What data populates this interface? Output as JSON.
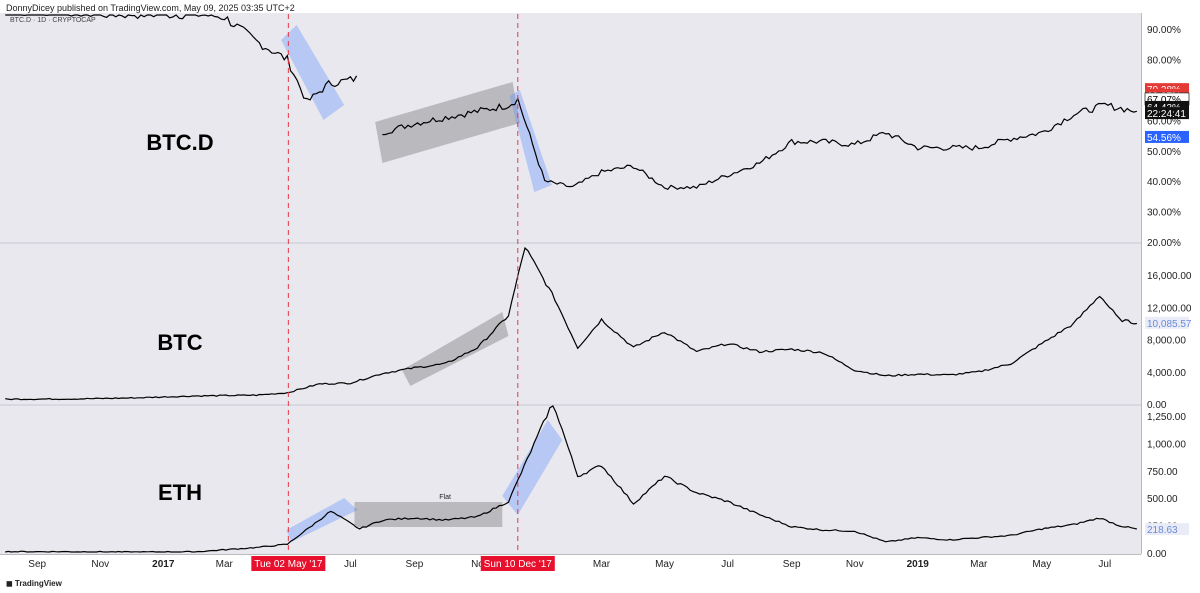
{
  "header": {
    "attribution": "DonnyDicey published on TradingView.com, May 09, 2025 03:35 UTC+2",
    "symbol": "BTC.D · 1D · CRYPTOCAP"
  },
  "footer": {
    "brand": "TradingView"
  },
  "colors": {
    "bg": "#e8e8ee",
    "line": "#000000",
    "vline": "#e63946",
    "blue_box": "rgba(95,140,255,0.35)",
    "grey_box": "rgba(80,80,80,0.3)"
  },
  "chart_data": [
    {
      "type": "line",
      "title": "BTC.D",
      "ylim": [
        20,
        95
      ],
      "ticks": [
        "90.00%",
        "80.00%",
        "70.00%",
        "60.00%",
        "50.00%",
        "40.00%",
        "30.00%",
        "20.00%"
      ],
      "tick_values": [
        90,
        80,
        70,
        60,
        50,
        40,
        30,
        20
      ],
      "price_labels": [
        {
          "text": "70.28%",
          "value": 70.28,
          "color": "#e53935"
        },
        {
          "text": "68.37%",
          "value": 68.37,
          "color": "#e53935"
        },
        {
          "text": "67.07%",
          "value": 67.07,
          "color": "#ffffff"
        },
        {
          "text": "64.43%",
          "value": 64.43,
          "color": "#111111"
        },
        {
          "text": "22:24:41",
          "value": 62.4,
          "color": "#111111"
        },
        {
          "text": "54.56%",
          "value": 54.56,
          "color": "#2962ff"
        }
      ],
      "x": [
        "2016-08-01",
        "2016-09-01",
        "2016-10-01",
        "2016-11-01",
        "2016-12-01",
        "2017-01-01",
        "2017-02-01",
        "2017-03-01",
        "2017-04-01",
        "2017-05-01",
        "2017-05-20",
        "2017-06-10",
        "2017-07-10",
        "2017-08-01",
        "2017-09-01",
        "2017-10-01",
        "2017-11-01",
        "2017-12-01",
        "2017-12-10",
        "2018-01-05",
        "2018-02-01",
        "2018-03-01",
        "2018-04-01",
        "2018-05-01",
        "2018-06-01",
        "2018-07-01",
        "2018-08-01",
        "2018-09-01",
        "2018-10-01",
        "2018-11-01",
        "2018-12-01",
        "2019-01-01",
        "2019-02-01",
        "2019-03-01",
        "2019-04-01",
        "2019-05-01",
        "2019-06-01",
        "2019-07-01",
        "2019-08-01"
      ],
      "series": [
        {
          "values": [
            96,
            96,
            96,
            95,
            95,
            95,
            95,
            94,
            86,
            80,
            66,
            72,
            74,
            56,
            59,
            61,
            63,
            65,
            67,
            40,
            38,
            43,
            45,
            38,
            38,
            42,
            46,
            53,
            53,
            52,
            56,
            51,
            51,
            51,
            54,
            56,
            62,
            65,
            63
          ]
        }
      ],
      "annotations": []
    },
    {
      "type": "line",
      "title": "BTC",
      "ylim": [
        0,
        20000
      ],
      "ticks": [
        "16,000.00",
        "12,000.00",
        "8,000.00",
        "4,000.00",
        "0.00"
      ],
      "tick_values": [
        16000,
        12000,
        8000,
        4000,
        0
      ],
      "price_labels": [
        {
          "text": "10,085.57",
          "value": 10085.57,
          "color": "#e9ecf7"
        }
      ],
      "x": [
        "2016-08-01",
        "2016-10-01",
        "2016-12-01",
        "2017-02-01",
        "2017-04-01",
        "2017-05-01",
        "2017-06-01",
        "2017-07-01",
        "2017-08-01",
        "2017-09-01",
        "2017-10-01",
        "2017-11-01",
        "2017-12-01",
        "2017-12-17",
        "2018-01-15",
        "2018-02-06",
        "2018-03-01",
        "2018-04-01",
        "2018-05-01",
        "2018-06-01",
        "2018-07-01",
        "2018-08-01",
        "2018-09-01",
        "2018-10-01",
        "2018-11-01",
        "2018-12-01",
        "2019-01-01",
        "2019-02-01",
        "2019-03-01",
        "2019-04-01",
        "2019-05-01",
        "2019-06-01",
        "2019-06-26",
        "2019-07-15",
        "2019-08-01"
      ],
      "series": [
        {
          "values": [
            600,
            620,
            750,
            1000,
            1100,
            1400,
            2500,
            2600,
            3800,
            4500,
            5000,
            7000,
            11000,
            19500,
            13000,
            7000,
            10500,
            7000,
            9000,
            6500,
            7500,
            6500,
            6800,
            6400,
            4200,
            3500,
            3700,
            3600,
            4000,
            5000,
            7500,
            10000,
            13500,
            10500,
            10000
          ]
        }
      ],
      "annotations": []
    },
    {
      "type": "line",
      "title": "ETH",
      "ylim": [
        0,
        1350
      ],
      "ticks": [
        "1,250.00",
        "1,000.00",
        "750.00",
        "500.00",
        "250.00",
        "0.00"
      ],
      "tick_values": [
        1250,
        1000,
        750,
        500,
        250,
        0
      ],
      "price_labels": [
        {
          "text": "218.63",
          "value": 218.63,
          "color": "#e9ecf7"
        }
      ],
      "x": [
        "2016-08-01",
        "2016-10-01",
        "2016-12-01",
        "2017-02-01",
        "2017-04-01",
        "2017-05-01",
        "2017-06-12",
        "2017-07-10",
        "2017-08-01",
        "2017-09-01",
        "2017-10-01",
        "2017-11-01",
        "2017-12-01",
        "2018-01-13",
        "2018-02-06",
        "2018-03-01",
        "2018-04-01",
        "2018-05-01",
        "2018-06-01",
        "2018-07-01",
        "2018-08-01",
        "2018-09-01",
        "2018-10-01",
        "2018-11-01",
        "2018-12-01",
        "2019-01-01",
        "2019-02-01",
        "2019-03-01",
        "2019-04-01",
        "2019-05-01",
        "2019-06-01",
        "2019-06-26",
        "2019-07-15",
        "2019-08-01"
      ],
      "series": [
        {
          "values": [
            12,
            12,
            9,
            11,
            50,
            80,
            380,
            220,
            300,
            320,
            300,
            330,
            470,
            1380,
            700,
            800,
            450,
            700,
            550,
            470,
            350,
            240,
            210,
            200,
            100,
            140,
            120,
            140,
            160,
            220,
            260,
            320,
            250,
            218
          ]
        }
      ],
      "annotations": [
        {
          "text": "Flat"
        }
      ]
    }
  ],
  "x_axis": {
    "ticks": [
      "Sep",
      "Nov",
      "2017",
      "Mar",
      "Jul",
      "Sep",
      "No",
      "Mar",
      "May",
      "Jul",
      "Sep",
      "Nov",
      "2019",
      "Mar",
      "May",
      "Jul"
    ],
    "tick_dates": [
      "2016-09-01",
      "2016-11-01",
      "2017-01-01",
      "2017-03-01",
      "2017-07-01",
      "2017-09-01",
      "2017-11-01",
      "2018-03-01",
      "2018-05-01",
      "2018-07-01",
      "2018-09-01",
      "2018-11-01",
      "2019-01-01",
      "2019-03-01",
      "2019-05-01",
      "2019-07-01"
    ],
    "bold": [
      "2017",
      "2019"
    ],
    "date_range": [
      "2016-07-27",
      "2019-08-05"
    ],
    "highlight_labels": [
      {
        "text": "Tue 02 May '17",
        "date": "2017-05-02"
      },
      {
        "text": "Sun 10 Dec '17",
        "date": "2017-12-10"
      }
    ]
  },
  "vertical_markers": [
    "2017-05-02",
    "2017-12-10"
  ]
}
